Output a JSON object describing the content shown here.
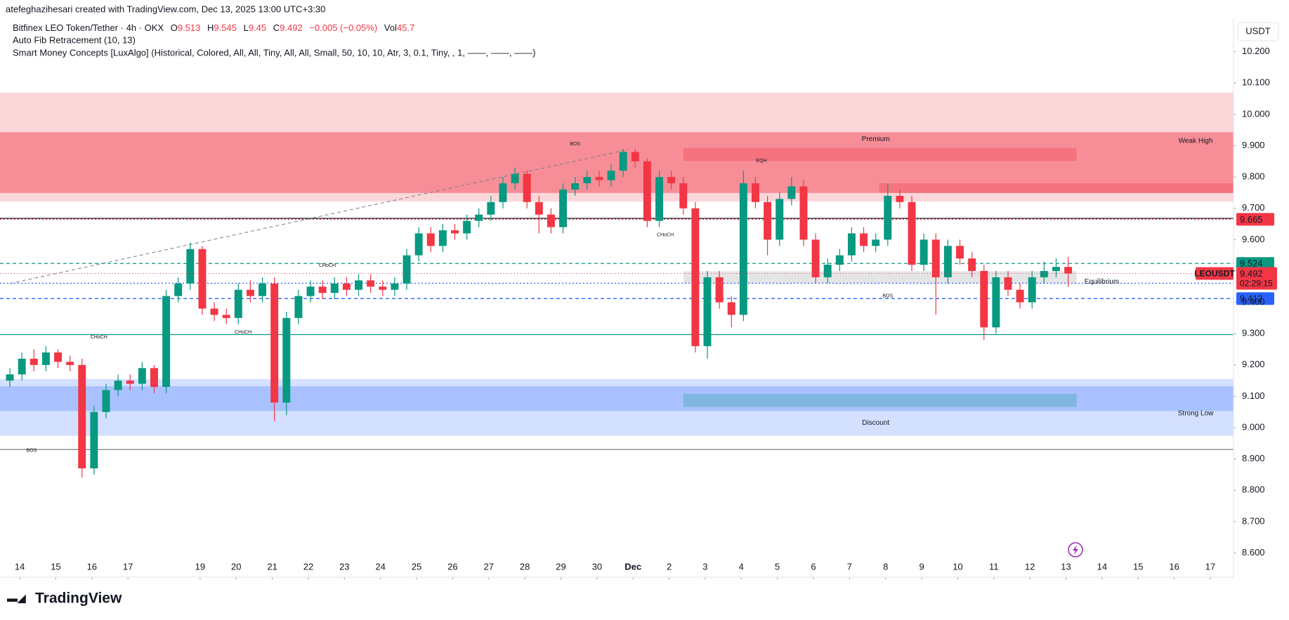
{
  "header": {
    "credit": "atefeghazihesari created with TradingView.com, Dec 13, 2025 13:00 UTC+3:30",
    "symbol": "Bitfinex LEO Token/Tether · 4h · OKX",
    "indicators": [
      "Auto Fib Retracement (10, 13)",
      "Smart Money Concepts [LuxAlgo] (Historical, Colored, All, All, Tiny, All, All, Small, 50, 10, 10, Atr, 3, 0.1, Tiny, , 1, ——, ——, ——)"
    ]
  },
  "chart_data": {
    "type": "candlestick",
    "currency": "USDT",
    "symbol_tag": "LEOUSDT",
    "countdown": "02:29:15",
    "ohlc_labels": [
      "O",
      "H",
      "L",
      "C"
    ],
    "change": "−0.005 (−0.05%)",
    "volume_label": "Vol",
    "volume": 45.7,
    "up_color": "#089981",
    "down_color": "#f23645",
    "open": [
      9.15,
      9.17,
      9.22,
      9.2,
      9.24,
      9.21,
      9.2,
      8.87,
      9.05,
      9.12,
      9.15,
      9.14,
      9.19,
      9.13,
      9.42,
      9.46,
      9.57,
      9.38,
      9.36,
      9.35,
      9.44,
      9.42,
      9.46,
      9.08,
      9.35,
      9.42,
      9.45,
      9.43,
      9.46,
      9.44,
      9.47,
      9.45,
      9.44,
      9.46,
      9.55,
      9.62,
      9.58,
      9.63,
      9.62,
      9.66,
      9.68,
      9.72,
      9.78,
      9.81,
      9.72,
      9.68,
      9.64,
      9.76,
      9.78,
      9.8,
      9.79,
      9.82,
      9.88,
      9.85,
      9.66,
      9.8,
      9.78,
      9.7,
      9.26,
      9.48,
      9.4,
      9.36,
      9.78,
      9.72,
      9.6,
      9.73,
      9.77,
      9.6,
      9.48,
      9.52,
      9.55,
      9.62,
      9.58,
      9.6,
      9.74,
      9.72,
      9.52,
      9.6,
      9.48,
      9.58,
      9.54,
      9.5,
      9.32,
      9.48,
      9.44,
      9.4,
      9.48,
      9.5,
      9.513
    ],
    "high": [
      9.19,
      9.24,
      9.25,
      9.26,
      9.25,
      9.23,
      9.22,
      9.07,
      9.14,
      9.17,
      9.17,
      9.21,
      9.2,
      9.44,
      9.48,
      9.59,
      9.58,
      9.4,
      9.38,
      9.46,
      9.47,
      9.48,
      9.48,
      9.37,
      9.44,
      9.47,
      9.47,
      9.48,
      9.48,
      9.49,
      9.49,
      9.47,
      9.48,
      9.57,
      9.64,
      9.64,
      9.65,
      9.65,
      9.68,
      9.7,
      9.74,
      9.8,
      9.83,
      9.82,
      9.74,
      9.7,
      9.78,
      9.8,
      9.82,
      9.82,
      9.84,
      9.89,
      9.89,
      9.86,
      9.82,
      9.82,
      9.8,
      9.72,
      9.5,
      9.5,
      9.42,
      9.82,
      9.8,
      9.74,
      9.75,
      9.8,
      9.79,
      9.62,
      9.54,
      9.57,
      9.64,
      9.64,
      9.62,
      9.78,
      9.76,
      9.74,
      9.62,
      9.62,
      9.6,
      9.6,
      9.56,
      9.52,
      9.5,
      9.5,
      9.46,
      9.5,
      9.53,
      9.54,
      9.545
    ],
    "low": [
      9.13,
      9.15,
      9.18,
      9.18,
      9.19,
      9.18,
      8.84,
      8.85,
      9.03,
      9.1,
      9.12,
      9.12,
      9.11,
      9.11,
      9.4,
      9.44,
      9.36,
      9.34,
      9.33,
      9.33,
      9.4,
      9.4,
      9.02,
      9.04,
      9.33,
      9.4,
      9.41,
      9.41,
      9.42,
      9.42,
      9.43,
      9.42,
      9.42,
      9.44,
      9.53,
      9.56,
      9.56,
      9.6,
      9.6,
      9.64,
      9.66,
      9.7,
      9.76,
      9.7,
      9.62,
      9.62,
      9.62,
      9.74,
      9.76,
      9.77,
      9.77,
      9.8,
      9.83,
      9.64,
      9.64,
      9.76,
      9.68,
      9.24,
      9.22,
      9.38,
      9.32,
      9.34,
      9.7,
      9.55,
      9.58,
      9.71,
      9.58,
      9.46,
      9.46,
      9.5,
      9.53,
      9.56,
      9.56,
      9.58,
      9.7,
      9.5,
      9.5,
      9.36,
      9.46,
      9.52,
      9.48,
      9.28,
      9.3,
      9.42,
      9.38,
      9.38,
      9.46,
      9.48,
      9.45
    ],
    "close": [
      9.17,
      9.22,
      9.2,
      9.24,
      9.21,
      9.2,
      8.87,
      9.05,
      9.12,
      9.15,
      9.14,
      9.19,
      9.13,
      9.42,
      9.46,
      9.57,
      9.38,
      9.36,
      9.35,
      9.44,
      9.42,
      9.46,
      9.08,
      9.35,
      9.42,
      9.45,
      9.43,
      9.46,
      9.44,
      9.47,
      9.45,
      9.44,
      9.46,
      9.55,
      9.62,
      9.58,
      9.63,
      9.62,
      9.66,
      9.68,
      9.72,
      9.78,
      9.81,
      9.72,
      9.68,
      9.64,
      9.76,
      9.78,
      9.8,
      9.79,
      9.82,
      9.88,
      9.85,
      9.66,
      9.8,
      9.78,
      9.7,
      9.26,
      9.48,
      9.4,
      9.36,
      9.78,
      9.72,
      9.6,
      9.73,
      9.77,
      9.6,
      9.48,
      9.52,
      9.55,
      9.62,
      9.58,
      9.6,
      9.74,
      9.72,
      9.52,
      9.6,
      9.48,
      9.58,
      9.54,
      9.5,
      9.32,
      9.48,
      9.44,
      9.4,
      9.48,
      9.5,
      9.513,
      9.492
    ],
    "xlim": [
      -0.82,
      101.75
    ],
    "ylim": [
      8.572,
      10.365
    ],
    "xticks": [
      {
        "value": 0.82,
        "label": "14"
      },
      {
        "value": 3.82,
        "label": "15"
      },
      {
        "value": 6.82,
        "label": "16"
      },
      {
        "value": 9.82,
        "label": "17"
      },
      {
        "value": 15.82,
        "label": "19"
      },
      {
        "value": 18.82,
        "label": "20"
      },
      {
        "value": 21.82,
        "label": "21"
      },
      {
        "value": 24.82,
        "label": "22"
      },
      {
        "value": 27.82,
        "label": "23"
      },
      {
        "value": 30.82,
        "label": "24"
      },
      {
        "value": 33.82,
        "label": "25"
      },
      {
        "value": 36.82,
        "label": "26"
      },
      {
        "value": 39.82,
        "label": "27"
      },
      {
        "value": 42.82,
        "label": "28"
      },
      {
        "value": 45.82,
        "label": "29"
      },
      {
        "value": 48.82,
        "label": "30"
      },
      {
        "value": 51.82,
        "label": "Dec"
      },
      {
        "value": 54.82,
        "label": "2"
      },
      {
        "value": 57.82,
        "label": "3"
      },
      {
        "value": 60.82,
        "label": "4"
      },
      {
        "value": 63.82,
        "label": "5"
      },
      {
        "value": 66.82,
        "label": "6"
      },
      {
        "value": 69.82,
        "label": "7"
      },
      {
        "value": 72.82,
        "label": "8"
      },
      {
        "value": 75.82,
        "label": "9"
      },
      {
        "value": 78.82,
        "label": "10"
      },
      {
        "value": 81.82,
        "label": "11"
      },
      {
        "value": 84.82,
        "label": "12"
      },
      {
        "value": 87.82,
        "label": "13"
      },
      {
        "value": 90.82,
        "label": "14"
      },
      {
        "value": 93.82,
        "label": "15"
      },
      {
        "value": 96.82,
        "label": "16"
      },
      {
        "value": 99.82,
        "label": "17"
      }
    ],
    "yticks": [
      {
        "value": 8.6,
        "label": "8.600"
      },
      {
        "value": 8.7,
        "label": "8.700"
      },
      {
        "value": 8.8,
        "label": "8.800"
      },
      {
        "value": 8.9,
        "label": "8.900"
      },
      {
        "value": 9.0,
        "label": "9.000"
      },
      {
        "value": 9.1,
        "label": "9.100"
      },
      {
        "value": 9.2,
        "label": "9.200"
      },
      {
        "value": 9.3,
        "label": "9.300"
      },
      {
        "value": 9.4,
        "label": "9.400"
      },
      {
        "value": 9.5,
        "label": "9.500"
      },
      {
        "value": 9.6,
        "label": "9.600"
      },
      {
        "value": 9.7,
        "label": "9.700"
      },
      {
        "value": 9.8,
        "label": "9.800"
      },
      {
        "value": 9.9,
        "label": "9.900"
      },
      {
        "value": 10.0,
        "label": "10.000"
      },
      {
        "value": 10.1,
        "label": "10.100"
      },
      {
        "value": 10.2,
        "label": "10.200"
      }
    ],
    "grid": false,
    "zones": [
      {
        "from": 10.069,
        "to": 9.722,
        "x0": -0.82,
        "x1": 101.75,
        "color": "rgba(242,54,69,0.2)"
      },
      {
        "from": 9.943,
        "to": 9.749,
        "x0": -0.82,
        "x1": 101.75,
        "color": "rgba(242,54,69,0.45)"
      },
      {
        "from": 9.893,
        "to": 9.851,
        "x0": 56,
        "x1": 88.7,
        "color": "rgba(242,54,69,0.3)"
      },
      {
        "from": 9.78,
        "to": 9.749,
        "x0": 72.3,
        "x1": 101.75,
        "color": "rgba(242,54,69,0.3)"
      },
      {
        "from": 9.155,
        "to": 8.974,
        "x0": -0.82,
        "x1": 101.75,
        "color": "rgba(41,98,255,0.2)"
      },
      {
        "from": 9.132,
        "to": 9.053,
        "x0": -0.82,
        "x1": 101.75,
        "color": "rgba(41,98,255,0.25)"
      },
      {
        "from": 9.108,
        "to": 9.066,
        "x0": 56,
        "x1": 88.7,
        "color": "rgba(8,153,129,0.25)"
      },
      {
        "from": 9.499,
        "to": 9.46,
        "x0": 56,
        "x1": 88.7,
        "color": "rgba(120,123,134,0.2)"
      }
    ],
    "levels": [
      {
        "value": 9.665,
        "color": "#f23645",
        "style": "dotted",
        "tag": true
      },
      {
        "value": 9.524,
        "color": "#089981",
        "style": "dashed",
        "tag": true
      },
      {
        "value": 9.461,
        "color": "#2962ff",
        "style": "dotted",
        "tag": true
      },
      {
        "value": 9.412,
        "color": "#2962ff",
        "style": "dashed",
        "tag": true
      },
      {
        "value": 9.668,
        "color": "#131722",
        "style": "solid",
        "tag": false
      },
      {
        "value": 9.297,
        "color": "#089981",
        "style": "solid",
        "tag": false
      },
      {
        "value": 8.93,
        "color": "#787b86",
        "style": "solid",
        "tag": false
      }
    ],
    "trendline": {
      "x": [
        0,
        51.5
      ],
      "values": [
        9.46,
        9.888
      ]
    },
    "annotations": [
      {
        "text": "Premium",
        "x": 72,
        "value": 9.92,
        "color": "#f23645"
      },
      {
        "text": "Discount",
        "x": 72,
        "value": 9.015,
        "color": "#089981"
      },
      {
        "text": "Equilibrium",
        "x": 90.8,
        "value": 9.465,
        "color": "#787b86"
      },
      {
        "text": "Weak High",
        "x": 98.6,
        "value": 9.915,
        "color": "#f23645"
      },
      {
        "text": "Strong Low",
        "x": 98.6,
        "value": 9.045,
        "color": "#089981"
      },
      {
        "text": "BOS",
        "x": 47,
        "value": 9.905,
        "color": "#089981"
      },
      {
        "text": "CHoCH",
        "x": 7.4,
        "value": 9.289,
        "color": "#089981"
      },
      {
        "text": "CHoCH",
        "x": 19.4,
        "value": 9.305,
        "color": "#f23645"
      },
      {
        "text": "CHoCH",
        "x": 26.4,
        "value": 9.518,
        "color": "#089981"
      },
      {
        "text": "CHoCH",
        "x": 54.5,
        "value": 9.615,
        "color": "#f23645"
      },
      {
        "text": "EQH",
        "x": 62.5,
        "value": 9.851,
        "color": "#f23645"
      },
      {
        "text": "BOS",
        "x": 73,
        "value": 9.42,
        "color": "#f23645"
      },
      {
        "text": "BOS",
        "x": 1.8,
        "value": 8.927,
        "color": "#f23645"
      }
    ]
  },
  "footer": {
    "brand": "TradingView"
  }
}
